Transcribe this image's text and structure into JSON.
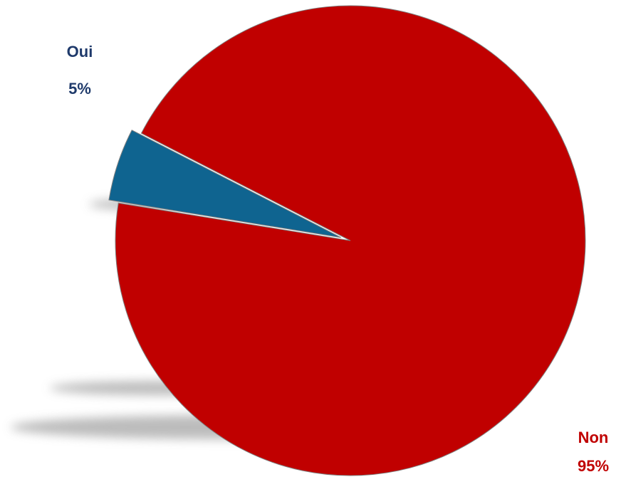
{
  "chart_data": {
    "type": "pie",
    "title": "",
    "slices": [
      {
        "label": "Oui",
        "value": 5,
        "value_label": "5%",
        "color": "#0F6490",
        "label_color": "#1F3A6B",
        "exploded": true
      },
      {
        "label": "Non",
        "value": 95,
        "value_label": "95%",
        "color": "#C00000",
        "label_color": "#C00000",
        "exploded": false
      }
    ],
    "legend": "none",
    "style": {
      "shadow": true,
      "outline_color": "#7F7F7F"
    }
  }
}
